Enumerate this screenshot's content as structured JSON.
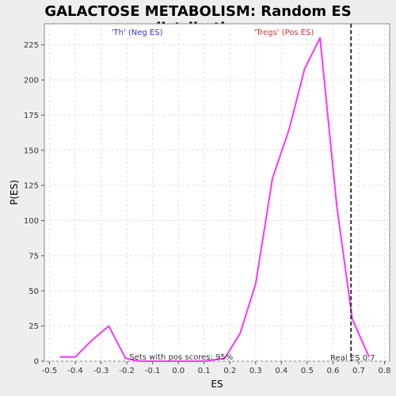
{
  "chart_data": {
    "type": "line",
    "title": "GALACTOSE METABOLISM: Random ES distribution",
    "xlabel": "ES",
    "ylabel": "P(ES)",
    "xlim": [
      -0.52,
      0.82
    ],
    "ylim": [
      0,
      240
    ],
    "x_ticks": [
      -0.5,
      -0.4,
      -0.3,
      -0.2,
      -0.1,
      0.0,
      0.1,
      0.2,
      0.3,
      0.4,
      0.5,
      0.6,
      0.7,
      0.8
    ],
    "x_tick_labels": [
      "-0.5",
      "-0.4",
      "-0.3",
      "-0.2",
      "-0.1",
      "0.0",
      "0.1",
      "0.2",
      "0.3",
      "0.4",
      "0.5",
      "0.6",
      "0.7",
      "0.8"
    ],
    "y_ticks": [
      0,
      25,
      50,
      75,
      100,
      125,
      150,
      175,
      200,
      225
    ],
    "y_tick_labels": [
      "0",
      "25",
      "50",
      "75",
      "100",
      "125",
      "150",
      "175",
      "200",
      "225"
    ],
    "grid": true,
    "series": [
      {
        "color": "#ff33ff",
        "x": [
          -0.46,
          -0.4,
          -0.335,
          -0.27,
          -0.205,
          -0.15,
          -0.1,
          0.0,
          0.1,
          0.18,
          0.24,
          0.3,
          0.365,
          0.43,
          0.49,
          0.55,
          0.615,
          0.675,
          0.74
        ],
        "y": [
          3,
          3,
          15,
          25,
          2,
          0,
          0,
          0,
          0,
          2,
          20,
          55,
          130,
          165,
          208,
          230,
          110,
          30,
          3
        ]
      }
    ],
    "real_es": 0.67,
    "annotations": {
      "neg_label": "'Th' (Neg ES)",
      "pos_label": "'Tregs' (Pos ES)",
      "sets_label": "Sets with pos scores: 95%",
      "real_label": "Real ES 0.7"
    },
    "colors": {
      "neg": "#3333cc",
      "pos": "#cc3333",
      "real_line": "#333333"
    }
  }
}
